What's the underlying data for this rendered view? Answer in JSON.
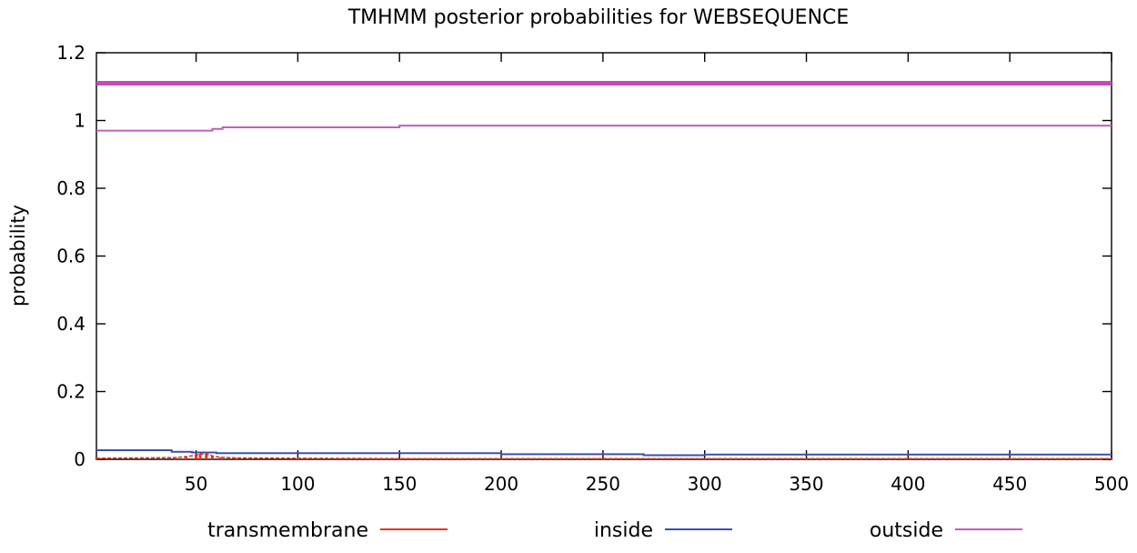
{
  "chart_data": {
    "type": "line",
    "title": "TMHMM posterior probabilities for WEBSEQUENCE",
    "xlabel": "",
    "ylabel": "probability",
    "xlim": [
      1,
      500
    ],
    "ylim": [
      0,
      1.2
    ],
    "xticks": [
      50,
      100,
      150,
      200,
      250,
      300,
      350,
      400,
      450,
      500
    ],
    "yticks": [
      0,
      0.2,
      0.4,
      0.6,
      0.8,
      1,
      1.2
    ],
    "grid": false,
    "legend_position": "bottom",
    "topology_band": {
      "label": "outside",
      "y": 1.11,
      "from": 1,
      "to": 500,
      "color": "#c848b8"
    },
    "series": [
      {
        "name": "transmembrane",
        "color": "#e8341c",
        "style": "impulse",
        "points": [
          [
            1,
            0.003
          ],
          [
            40,
            0.005
          ],
          [
            45,
            0.008
          ],
          [
            50,
            0.012
          ],
          [
            52,
            0.016
          ],
          [
            55,
            0.016
          ],
          [
            58,
            0.01
          ],
          [
            62,
            0.006
          ],
          [
            70,
            0.004
          ],
          [
            100,
            0.003
          ],
          [
            150,
            0.002
          ],
          [
            200,
            0.002
          ],
          [
            250,
            0.002
          ],
          [
            280,
            0.002
          ],
          [
            300,
            0.002
          ],
          [
            350,
            0.002
          ],
          [
            400,
            0.002
          ],
          [
            450,
            0.002
          ],
          [
            500,
            0.002
          ]
        ]
      },
      {
        "name": "inside",
        "color": "#3a50b0",
        "style": "step",
        "points": [
          [
            1,
            0.027
          ],
          [
            38,
            0.027
          ],
          [
            38,
            0.022
          ],
          [
            48,
            0.022
          ],
          [
            48,
            0.02
          ],
          [
            60,
            0.02
          ],
          [
            60,
            0.018
          ],
          [
            200,
            0.018
          ],
          [
            200,
            0.015
          ],
          [
            270,
            0.015
          ],
          [
            270,
            0.012
          ],
          [
            300,
            0.012
          ],
          [
            300,
            0.014
          ],
          [
            500,
            0.014
          ]
        ]
      },
      {
        "name": "outside",
        "color": "#c060b8",
        "style": "step",
        "points": [
          [
            1,
            0.97
          ],
          [
            58,
            0.97
          ],
          [
            58,
            0.975
          ],
          [
            63,
            0.975
          ],
          [
            63,
            0.98
          ],
          [
            150,
            0.98
          ],
          [
            150,
            0.985
          ],
          [
            500,
            0.985
          ]
        ]
      }
    ]
  }
}
